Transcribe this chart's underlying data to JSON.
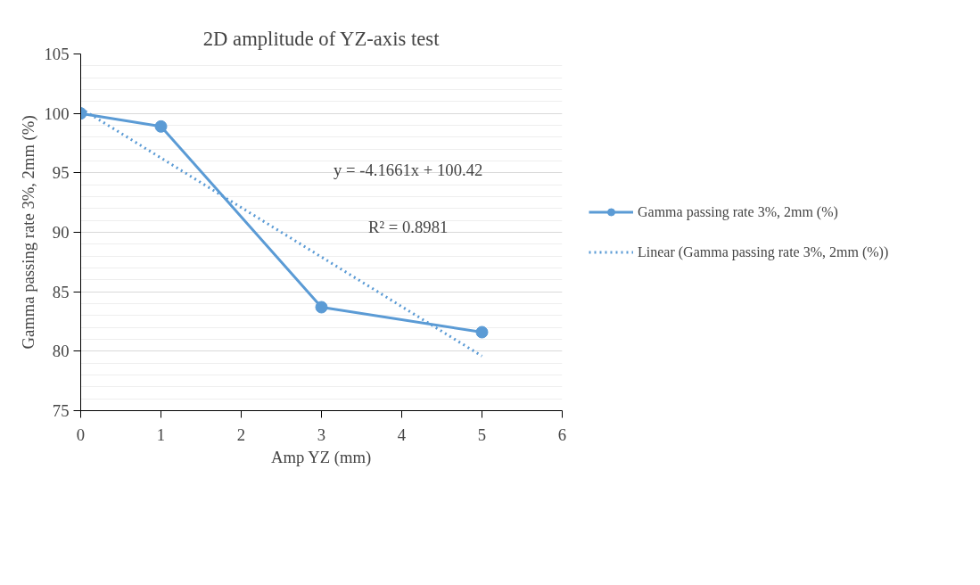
{
  "chart_data": {
    "type": "line",
    "title": "2D amplitude of YZ-axis test",
    "xlabel": "Amp YZ (mm)",
    "ylabel": "Gamma passing rate 3%, 2mm (%)",
    "x": [
      0,
      1,
      3,
      5
    ],
    "series": [
      {
        "name": "Gamma passing rate 3%, 2mm (%)",
        "color": "#5b9bd5",
        "values": [
          100,
          98.9,
          83.7,
          81.6
        ],
        "marker": "circle",
        "line_style": "solid"
      },
      {
        "name": "Linear (Gamma passing rate 3%, 2mm (%))",
        "color": "#5b9bd5",
        "type": "line",
        "x": [
          0,
          5
        ],
        "values": [
          100.42,
          79.59
        ],
        "marker": "none",
        "line_style": "dotted"
      }
    ],
    "annotations": [
      "y = -4.1661x + 100.42",
      "R² = 0.8981"
    ],
    "xlim": [
      0,
      6
    ],
    "xticks": [
      0,
      1,
      2,
      3,
      4,
      5,
      6
    ],
    "ylim": [
      75,
      105
    ],
    "yticks": [
      75,
      80,
      85,
      90,
      95,
      100,
      105
    ],
    "grid": "y",
    "legend": "right"
  }
}
